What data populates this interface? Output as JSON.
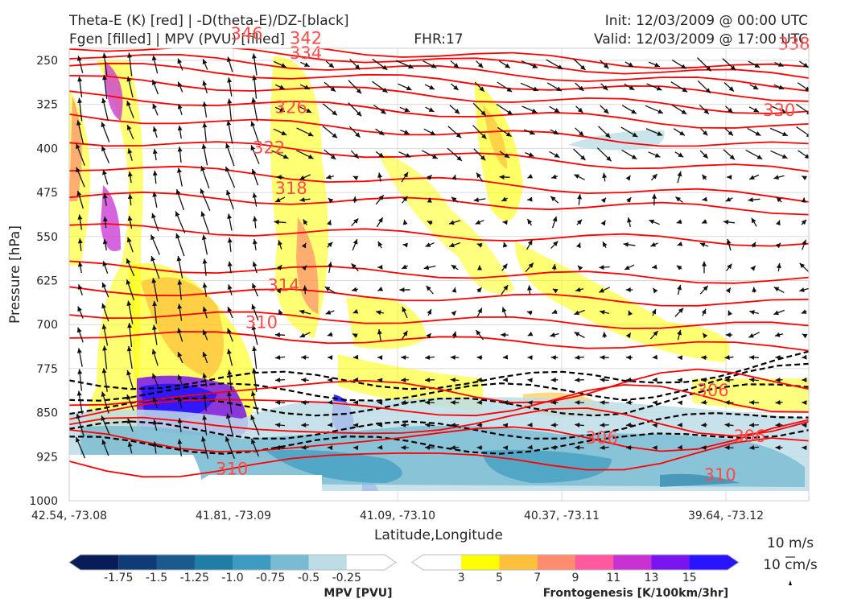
{
  "header": {
    "title_line1": "Theta-E (K) [red] | -D(theta-E)/DZ-[black]",
    "title_line2": "Fgen [filled] | MPV (PVU) [filled]",
    "fhr": "FHR:17",
    "init": "Init: 12/03/2009 @ 00:00 UTC",
    "valid": "Valid: 12/03/2009 @ 17:00 UTC"
  },
  "chart_data": {
    "type": "cross-section",
    "xlabel": "Latitude,Longitude",
    "ylabel": "Pressure [hPa]",
    "x_ticks": [
      "42.54, -73.08",
      "41.81, -73.09",
      "41.09, -73.10",
      "40.37, -73.11",
      "39.64, -73.12"
    ],
    "y_ticks": [
      250,
      325,
      400,
      475,
      550,
      625,
      700,
      775,
      850,
      925,
      1000
    ],
    "ylim": [
      1000,
      200
    ],
    "grid": true,
    "theta_e_labels": [
      {
        "value": "346",
        "xi": 0.24,
        "p": 205
      },
      {
        "value": "342",
        "xi": 0.32,
        "p": 212
      },
      {
        "value": "334",
        "xi": 0.32,
        "p": 238
      },
      {
        "value": "338",
        "xi": 0.98,
        "p": 222
      },
      {
        "value": "326",
        "xi": 0.3,
        "p": 330
      },
      {
        "value": "330",
        "xi": 0.96,
        "p": 335
      },
      {
        "value": "322",
        "xi": 0.27,
        "p": 399
      },
      {
        "value": "318",
        "xi": 0.3,
        "p": 468
      },
      {
        "value": "314",
        "xi": 0.29,
        "p": 633
      },
      {
        "value": "310",
        "xi": 0.26,
        "p": 696
      },
      {
        "value": "306",
        "xi": 0.87,
        "p": 812
      },
      {
        "value": "306",
        "xi": 0.72,
        "p": 893
      },
      {
        "value": "310",
        "xi": 0.22,
        "p": 946
      },
      {
        "value": "310",
        "xi": 0.88,
        "p": 956
      },
      {
        "value": "306",
        "xi": 0.92,
        "p": 890
      }
    ],
    "mpv_colorbar": {
      "label": "MPV [PVU]",
      "ticks": [
        "-1.75",
        "-1.5",
        "-1.25",
        "-1.0",
        "-0.75",
        "-0.5",
        "-0.25"
      ],
      "colors": [
        "#081d58",
        "#0f3c78",
        "#1b5a8c",
        "#1f7da6",
        "#3b9bc1",
        "#79bbd2",
        "#bddde6",
        "#ffffff"
      ]
    },
    "fgen_colorbar": {
      "label": "Frontogenesis [K/100km/3hr]",
      "ticks": [
        "3",
        "5",
        "7",
        "9",
        "11",
        "13",
        "15"
      ],
      "colors": [
        "#ffffff",
        "#ffff00",
        "#ffc03c",
        "#ff8c6e",
        "#ff5aa0",
        "#c832d2",
        "#7814f0",
        "#2814ff"
      ]
    },
    "vector_key": {
      "label1": "10 m/s",
      "label2": "10 cm/s"
    }
  },
  "colors": {
    "theta_e": "#ff0000",
    "gradient": "#000000",
    "grid": "#d9d9d9"
  }
}
